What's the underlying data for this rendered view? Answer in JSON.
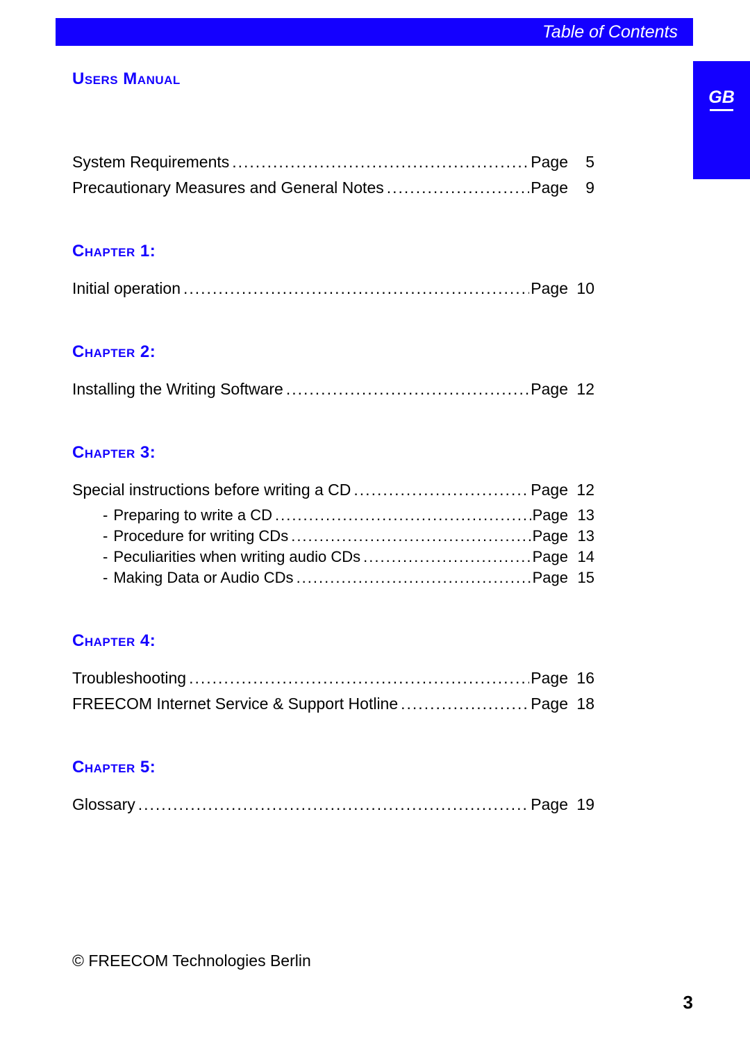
{
  "colors": {
    "accent": "#1400ff",
    "text": "#000000",
    "background": "#ffffff",
    "header_text": "#ffffff"
  },
  "header": {
    "title": "Table of Contents"
  },
  "right_tab": {
    "label": "GB"
  },
  "sections": {
    "users_manual": {
      "title": "Users Manual",
      "entries": [
        {
          "label": "System Requirements",
          "page_word": "Page",
          "page": "5"
        },
        {
          "label": "Precautionary Measures and General Notes",
          "page_word": "Page",
          "page": "9"
        }
      ]
    },
    "chapter1": {
      "title": "Chapter 1:",
      "entries": [
        {
          "label": "Initial operation",
          "page_word": "Page",
          "page": "10"
        }
      ]
    },
    "chapter2": {
      "title": "Chapter 2:",
      "entries": [
        {
          "label": "Installing the Writing Software",
          "page_word": "Page",
          "page": "12"
        }
      ]
    },
    "chapter3": {
      "title": "Chapter 3:",
      "entries": [
        {
          "label": "Special instructions before writing a CD",
          "page_word": "Page",
          "page": "12"
        }
      ],
      "sub_entries": [
        {
          "label": "Preparing to write a CD",
          "page_word": "Page",
          "page": "13"
        },
        {
          "label": "Procedure for writing CDs",
          "page_word": "Page",
          "page": "13"
        },
        {
          "label": "Peculiarities when writing audio CDs",
          "page_word": "Page",
          "page": "14"
        },
        {
          "label": "Making Data or Audio CDs",
          "page_word": "Page",
          "page": "15"
        }
      ]
    },
    "chapter4": {
      "title": "Chapter 4:",
      "entries": [
        {
          "label": "Troubleshooting",
          "page_word": "Page",
          "page": "16"
        },
        {
          "label": "FREECOM Internet Service & Support Hotline",
          "page_word": "Page",
          "page": "18"
        }
      ]
    },
    "chapter5": {
      "title": "Chapter 5:",
      "entries": [
        {
          "label": "Glossary",
          "page_word": "Page",
          "page": "19"
        }
      ]
    }
  },
  "footer": {
    "copyright": "©  FREECOM Technologies  Berlin",
    "page_number": "3"
  },
  "typography": {
    "body_font": "Segoe UI, Helvetica Neue, Arial, sans-serif",
    "section_title_fontsize": 24,
    "toc_line_fontsize": 23,
    "toc_sub_fontsize": 22,
    "header_title_fontsize": 25,
    "page_number_fontsize": 26
  }
}
